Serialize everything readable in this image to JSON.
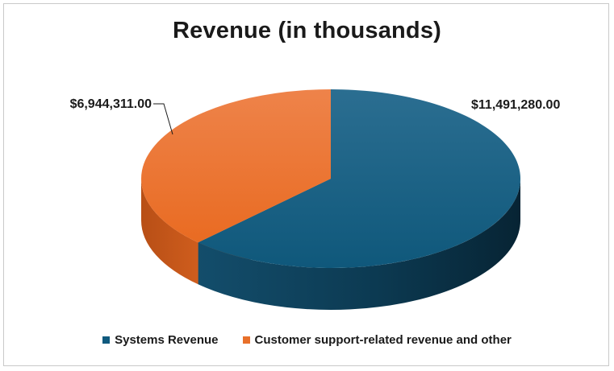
{
  "chart_data": {
    "type": "pie",
    "title": "Revenue (in thousands)",
    "slices": [
      {
        "name": "Systems Revenue",
        "value": 11491280.0,
        "label": "$11,491,280.00",
        "color": "#0f5a7e"
      },
      {
        "name": "Customer support-related revenue and other",
        "value": 6944311.0,
        "label": "$6,944,311.00",
        "color": "#e8702a"
      }
    ],
    "legend_position": "bottom",
    "style": "3d"
  }
}
